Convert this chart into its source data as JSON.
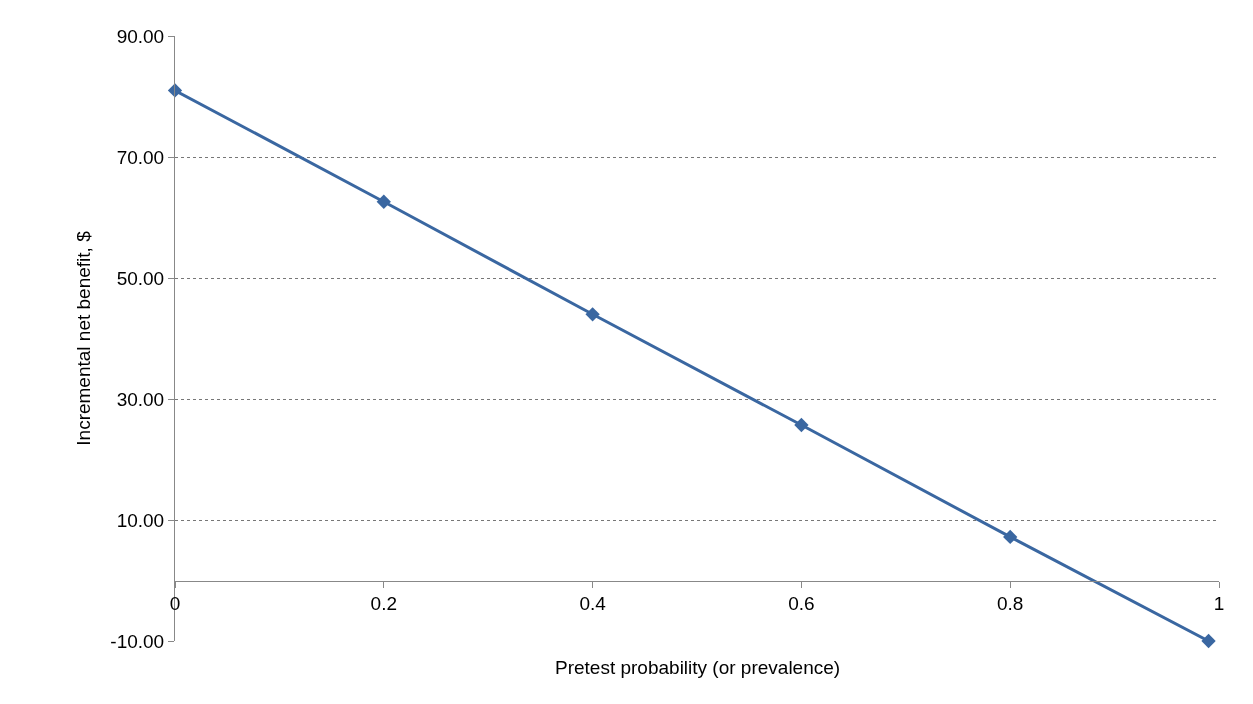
{
  "chart_data": {
    "type": "line",
    "xlabel": "Pretest probability (or prevalence)",
    "ylabel": "Incremental net benefit, $",
    "x": [
      0,
      0.2,
      0.4,
      0.6,
      0.8,
      0.99
    ],
    "series": [
      {
        "color": "#3a67a1",
        "values": [
          81,
          62.6,
          44.0,
          25.7,
          7.2,
          -10
        ]
      }
    ],
    "xlim": [
      0,
      1
    ],
    "xticks": [
      0,
      0.2,
      0.4,
      0.6,
      0.8,
      1
    ],
    "ylim": [
      -10,
      90
    ],
    "yticks": [
      {
        "value": -10,
        "label": "-10.00"
      },
      {
        "value": 10,
        "label": "10.00"
      },
      {
        "value": 30,
        "label": "30.00"
      },
      {
        "value": 50,
        "label": "50.00"
      },
      {
        "value": 70,
        "label": "70.00"
      },
      {
        "value": 90,
        "label": "90.00"
      }
    ],
    "grid": "y",
    "marker": "diamond",
    "line_style": "solid"
  }
}
